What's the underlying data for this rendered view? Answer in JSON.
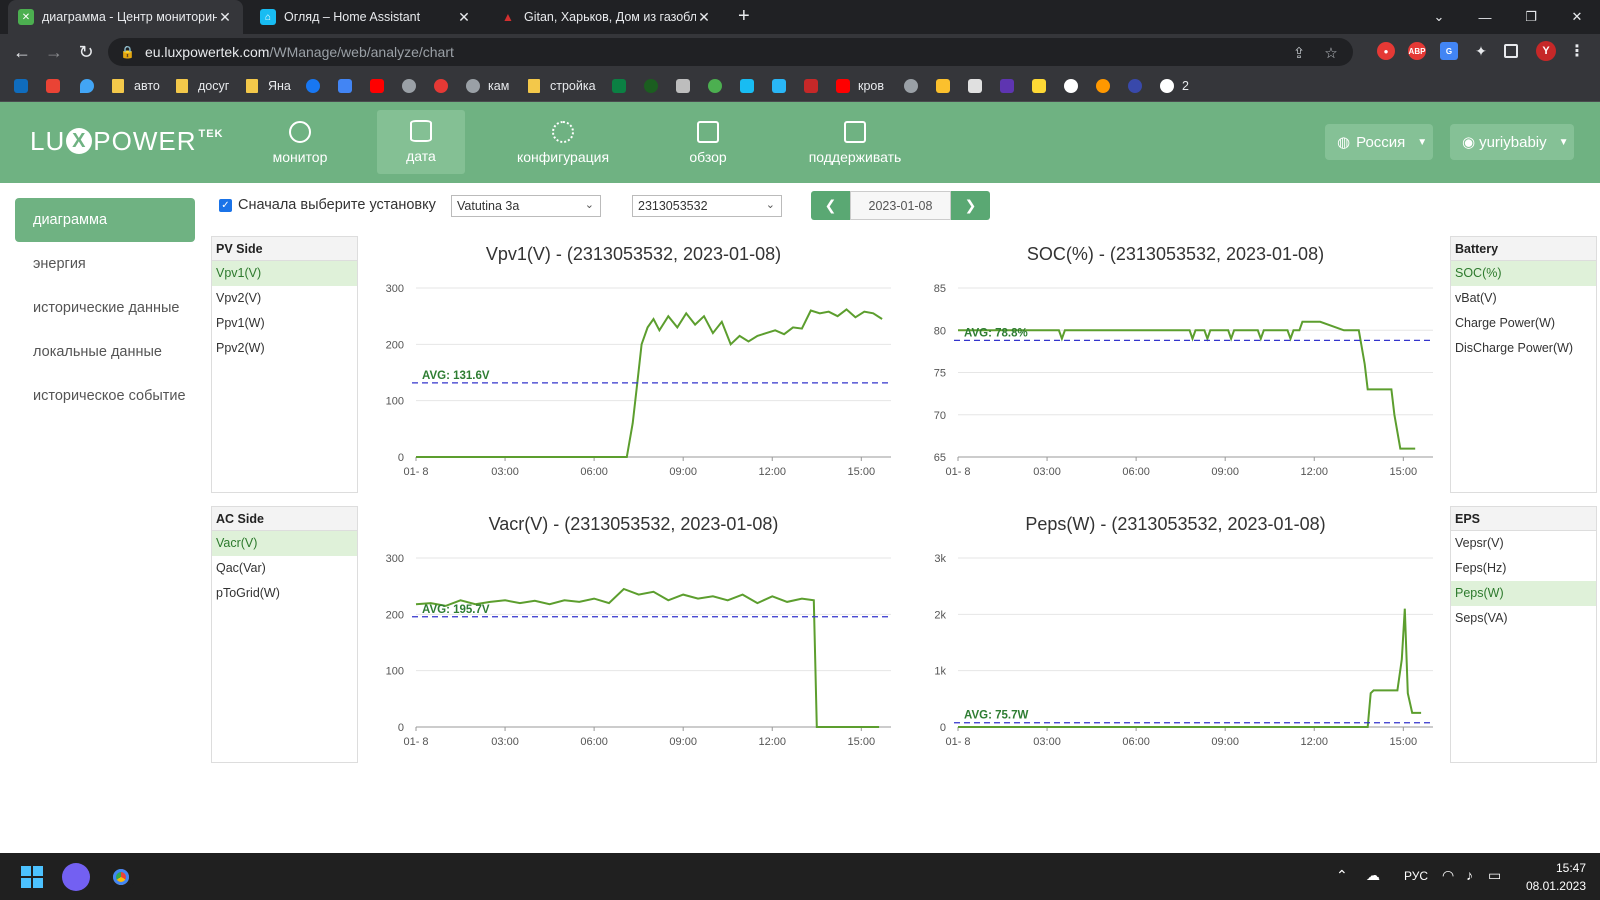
{
  "browser": {
    "tabs": [
      {
        "title": "диаграмма - Центр мониторинга",
        "icon": "luxpower-icon",
        "color": "#4caf50"
      },
      {
        "title": "Огляд – Home Assistant",
        "icon": "home-assistant-icon",
        "color": "#18bcf2"
      },
      {
        "title": "Gitan, Харьков, Дом из газобл",
        "icon": "red-logo-icon",
        "color": "#d32f2f"
      }
    ],
    "url_host": "eu.luxpowertek.com",
    "url_path": "/WManage/web/analyze/chart",
    "profile_letter": "Y",
    "bookmarks": [
      {
        "label": "авто",
        "type": "folder"
      },
      {
        "label": "досуг",
        "type": "folder"
      },
      {
        "label": "Яна",
        "type": "folder"
      },
      {
        "label": "кам",
        "type": "link"
      },
      {
        "label": "стройка",
        "type": "folder"
      },
      {
        "label": "кров",
        "type": "link"
      },
      {
        "label": "2",
        "type": "link"
      }
    ]
  },
  "app": {
    "logo_left": "LU",
    "logo_x": "X",
    "logo_right": "POWER",
    "logo_sup": "TEK",
    "menu": [
      {
        "label": "монитор",
        "icon": "compass-icon"
      },
      {
        "label": "дата",
        "icon": "database-icon"
      },
      {
        "label": "конфигурация",
        "icon": "gear-icon"
      },
      {
        "label": "обзор",
        "icon": "grid-icon"
      },
      {
        "label": "поддерживать",
        "icon": "briefcase-icon"
      }
    ],
    "region": "Россия",
    "user": "yuriybabiy"
  },
  "sidebar": {
    "items": [
      "диаграмма",
      "энергия",
      "исторические данные",
      "локальные данные",
      "историческое событие"
    ]
  },
  "toolbar": {
    "select_label": "Сначала выберите установку",
    "plant": "Vatutina 3a",
    "serial": "2313053532",
    "date": "2023-01-08"
  },
  "panels": {
    "pv": {
      "title": "PV Side",
      "items": [
        "Vpv1(V)",
        "Vpv2(V)",
        "Ppv1(W)",
        "Ppv2(W)"
      ]
    },
    "battery": {
      "title": "Battery",
      "items": [
        "SOC(%)",
        "vBat(V)",
        "Charge Power(W)",
        "DisCharge Power(W)"
      ]
    },
    "ac": {
      "title": "AC Side",
      "items": [
        "Vacr(V)",
        "Qac(Var)",
        "pToGrid(W)"
      ]
    },
    "eps": {
      "title": "EPS",
      "items": [
        "Vepsr(V)",
        "Feps(Hz)",
        "Peps(W)",
        "Seps(VA)"
      ]
    }
  },
  "chart_data": [
    {
      "type": "line",
      "title": "Vpv1(V) - (2313053532, 2023-01-08)",
      "xticks": [
        "01- 8",
        "03:00",
        "06:00",
        "09:00",
        "12:00",
        "15:00"
      ],
      "xlim": [
        0,
        16
      ],
      "yticks": [
        "0",
        "100",
        "200",
        "300"
      ],
      "ylim": [
        0,
        300
      ],
      "avg_label": "AVG: 131.6V",
      "avg": 131.6,
      "line_color": "#5c9e2e",
      "avg_color": "#3333cc",
      "x": [
        0,
        7.1,
        7.3,
        7.45,
        7.6,
        7.8,
        8.0,
        8.2,
        8.5,
        8.8,
        9.1,
        9.4,
        9.7,
        10.0,
        10.3,
        10.6,
        10.9,
        11.2,
        11.5,
        11.8,
        12.1,
        12.4,
        12.7,
        13.0,
        13.3,
        13.6,
        13.9,
        14.2,
        14.5,
        14.8,
        15.1,
        15.4,
        15.7
      ],
      "y": [
        0,
        0,
        60,
        130,
        200,
        230,
        245,
        225,
        250,
        230,
        255,
        235,
        250,
        220,
        240,
        200,
        215,
        205,
        215,
        220,
        225,
        218,
        230,
        228,
        260,
        255,
        258,
        250,
        262,
        248,
        258,
        255,
        245
      ]
    },
    {
      "type": "line",
      "title": "SOC(%) - (2313053532, 2023-01-08)",
      "xticks": [
        "01- 8",
        "03:00",
        "06:00",
        "09:00",
        "12:00",
        "15:00"
      ],
      "xlim": [
        0,
        16
      ],
      "yticks": [
        "65",
        "70",
        "75",
        "80",
        "85"
      ],
      "ylim": [
        65,
        85
      ],
      "avg_label": "AVG: 78.8%",
      "avg": 78.8,
      "line_color": "#5c9e2e",
      "avg_color": "#3333cc",
      "x": [
        0,
        3.4,
        3.5,
        3.6,
        7.8,
        7.9,
        8.0,
        8.3,
        8.4,
        8.5,
        9.1,
        9.2,
        9.3,
        10.1,
        10.2,
        10.3,
        11.1,
        11.2,
        11.3,
        11.5,
        11.6,
        11.7,
        12.2,
        13.0,
        13.5,
        13.7,
        13.8,
        14.6,
        14.7,
        14.9,
        15.4
      ],
      "y": [
        80,
        80,
        79,
        80,
        80,
        79,
        80,
        80,
        79,
        80,
        80,
        79,
        80,
        80,
        79,
        80,
        80,
        79,
        80,
        80,
        81,
        81,
        81,
        80,
        80,
        76,
        73,
        73,
        70,
        66,
        66
      ]
    },
    {
      "type": "line",
      "title": "Vacr(V) - (2313053532, 2023-01-08)",
      "xticks": [
        "01- 8",
        "03:00",
        "06:00",
        "09:00",
        "12:00",
        "15:00"
      ],
      "xlim": [
        0,
        16
      ],
      "yticks": [
        "0",
        "100",
        "200",
        "300"
      ],
      "ylim": [
        0,
        300
      ],
      "avg_label": "AVG: 195.7V",
      "avg": 195.7,
      "line_color": "#5c9e2e",
      "avg_color": "#3333cc",
      "x": [
        0,
        0.5,
        1.0,
        1.5,
        2.0,
        2.5,
        3.0,
        3.5,
        4.0,
        4.5,
        5.0,
        5.5,
        6.0,
        6.5,
        7.0,
        7.5,
        8.0,
        8.5,
        9.0,
        9.5,
        10.0,
        10.5,
        11.0,
        11.5,
        12.0,
        12.5,
        13.0,
        13.4,
        13.5,
        15.6
      ],
      "y": [
        218,
        220,
        215,
        225,
        218,
        222,
        225,
        220,
        224,
        218,
        225,
        222,
        228,
        220,
        245,
        235,
        240,
        225,
        235,
        228,
        232,
        225,
        235,
        220,
        232,
        222,
        228,
        225,
        0,
        0
      ]
    },
    {
      "type": "line",
      "title": "Peps(W) - (2313053532, 2023-01-08)",
      "xticks": [
        "01- 8",
        "03:00",
        "06:00",
        "09:00",
        "12:00",
        "15:00"
      ],
      "xlim": [
        0,
        16
      ],
      "yticks": [
        "0",
        "1k",
        "2k",
        "3k"
      ],
      "ylim": [
        0,
        3000
      ],
      "avg_label": "AVG: 75.7W",
      "avg": 75.7,
      "line_color": "#5c9e2e",
      "avg_color": "#3333cc",
      "x": [
        0,
        13.8,
        13.9,
        14.0,
        14.8,
        14.95,
        15.05,
        15.15,
        15.3,
        15.6
      ],
      "y": [
        0,
        0,
        600,
        650,
        650,
        1200,
        2100,
        600,
        250,
        250
      ]
    }
  ],
  "taskbar": {
    "lang": "РУС",
    "time": "15:47",
    "date": "08.01.2023"
  }
}
